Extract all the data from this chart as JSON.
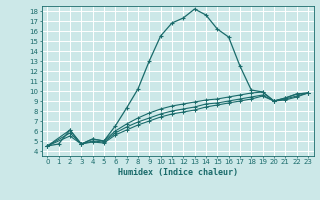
{
  "title": "",
  "xlabel": "Humidex (Indice chaleur)",
  "ylabel": "",
  "bg_color": "#cce8e8",
  "grid_color": "#b8d8d8",
  "line_color": "#1a6b6b",
  "xlim": [
    -0.5,
    23.5
  ],
  "ylim": [
    3.5,
    18.5
  ],
  "xticks": [
    0,
    1,
    2,
    3,
    4,
    5,
    6,
    7,
    8,
    9,
    10,
    11,
    12,
    13,
    14,
    15,
    16,
    17,
    18,
    19,
    20,
    21,
    22,
    23
  ],
  "yticks": [
    4,
    5,
    6,
    7,
    8,
    9,
    10,
    11,
    12,
    13,
    14,
    15,
    16,
    17,
    18
  ],
  "line1_x": [
    0,
    1,
    2,
    3,
    4,
    5,
    6,
    7,
    8,
    9,
    10,
    11,
    12,
    13,
    14,
    15,
    16,
    17,
    18,
    19,
    20,
    21,
    22,
    23
  ],
  "line1_y": [
    4.5,
    4.7,
    6.1,
    4.7,
    5.2,
    5.0,
    6.5,
    8.3,
    10.2,
    13.0,
    15.5,
    16.8,
    17.3,
    18.2,
    17.6,
    16.2,
    15.4,
    12.5,
    10.1,
    9.9,
    9.0,
    9.3,
    9.7,
    9.8
  ],
  "line2_x": [
    0,
    2,
    3,
    4,
    5,
    6,
    7,
    8,
    9,
    10,
    11,
    12,
    13,
    14,
    15,
    16,
    17,
    18,
    19,
    20,
    21,
    22,
    23
  ],
  "line2_y": [
    4.5,
    6.1,
    4.7,
    5.2,
    5.0,
    6.0,
    6.7,
    7.3,
    7.8,
    8.2,
    8.5,
    8.7,
    8.9,
    9.1,
    9.2,
    9.4,
    9.6,
    9.8,
    9.9,
    9.0,
    9.3,
    9.7,
    9.8
  ],
  "line3_x": [
    0,
    2,
    3,
    4,
    5,
    6,
    7,
    8,
    9,
    10,
    11,
    12,
    13,
    14,
    15,
    16,
    17,
    18,
    19,
    20,
    21,
    22,
    23
  ],
  "line3_y": [
    4.5,
    5.8,
    4.7,
    5.0,
    4.9,
    5.8,
    6.4,
    6.9,
    7.3,
    7.7,
    8.0,
    8.2,
    8.4,
    8.7,
    8.8,
    9.0,
    9.2,
    9.4,
    9.6,
    9.0,
    9.2,
    9.5,
    9.8
  ],
  "line4_x": [
    0,
    2,
    3,
    4,
    5,
    6,
    7,
    8,
    9,
    10,
    11,
    12,
    13,
    14,
    15,
    16,
    17,
    18,
    19,
    20,
    21,
    22,
    23
  ],
  "line4_y": [
    4.5,
    5.5,
    4.7,
    4.9,
    4.8,
    5.6,
    6.1,
    6.6,
    7.0,
    7.4,
    7.7,
    7.9,
    8.1,
    8.4,
    8.6,
    8.8,
    9.0,
    9.2,
    9.5,
    9.0,
    9.1,
    9.4,
    9.8
  ]
}
